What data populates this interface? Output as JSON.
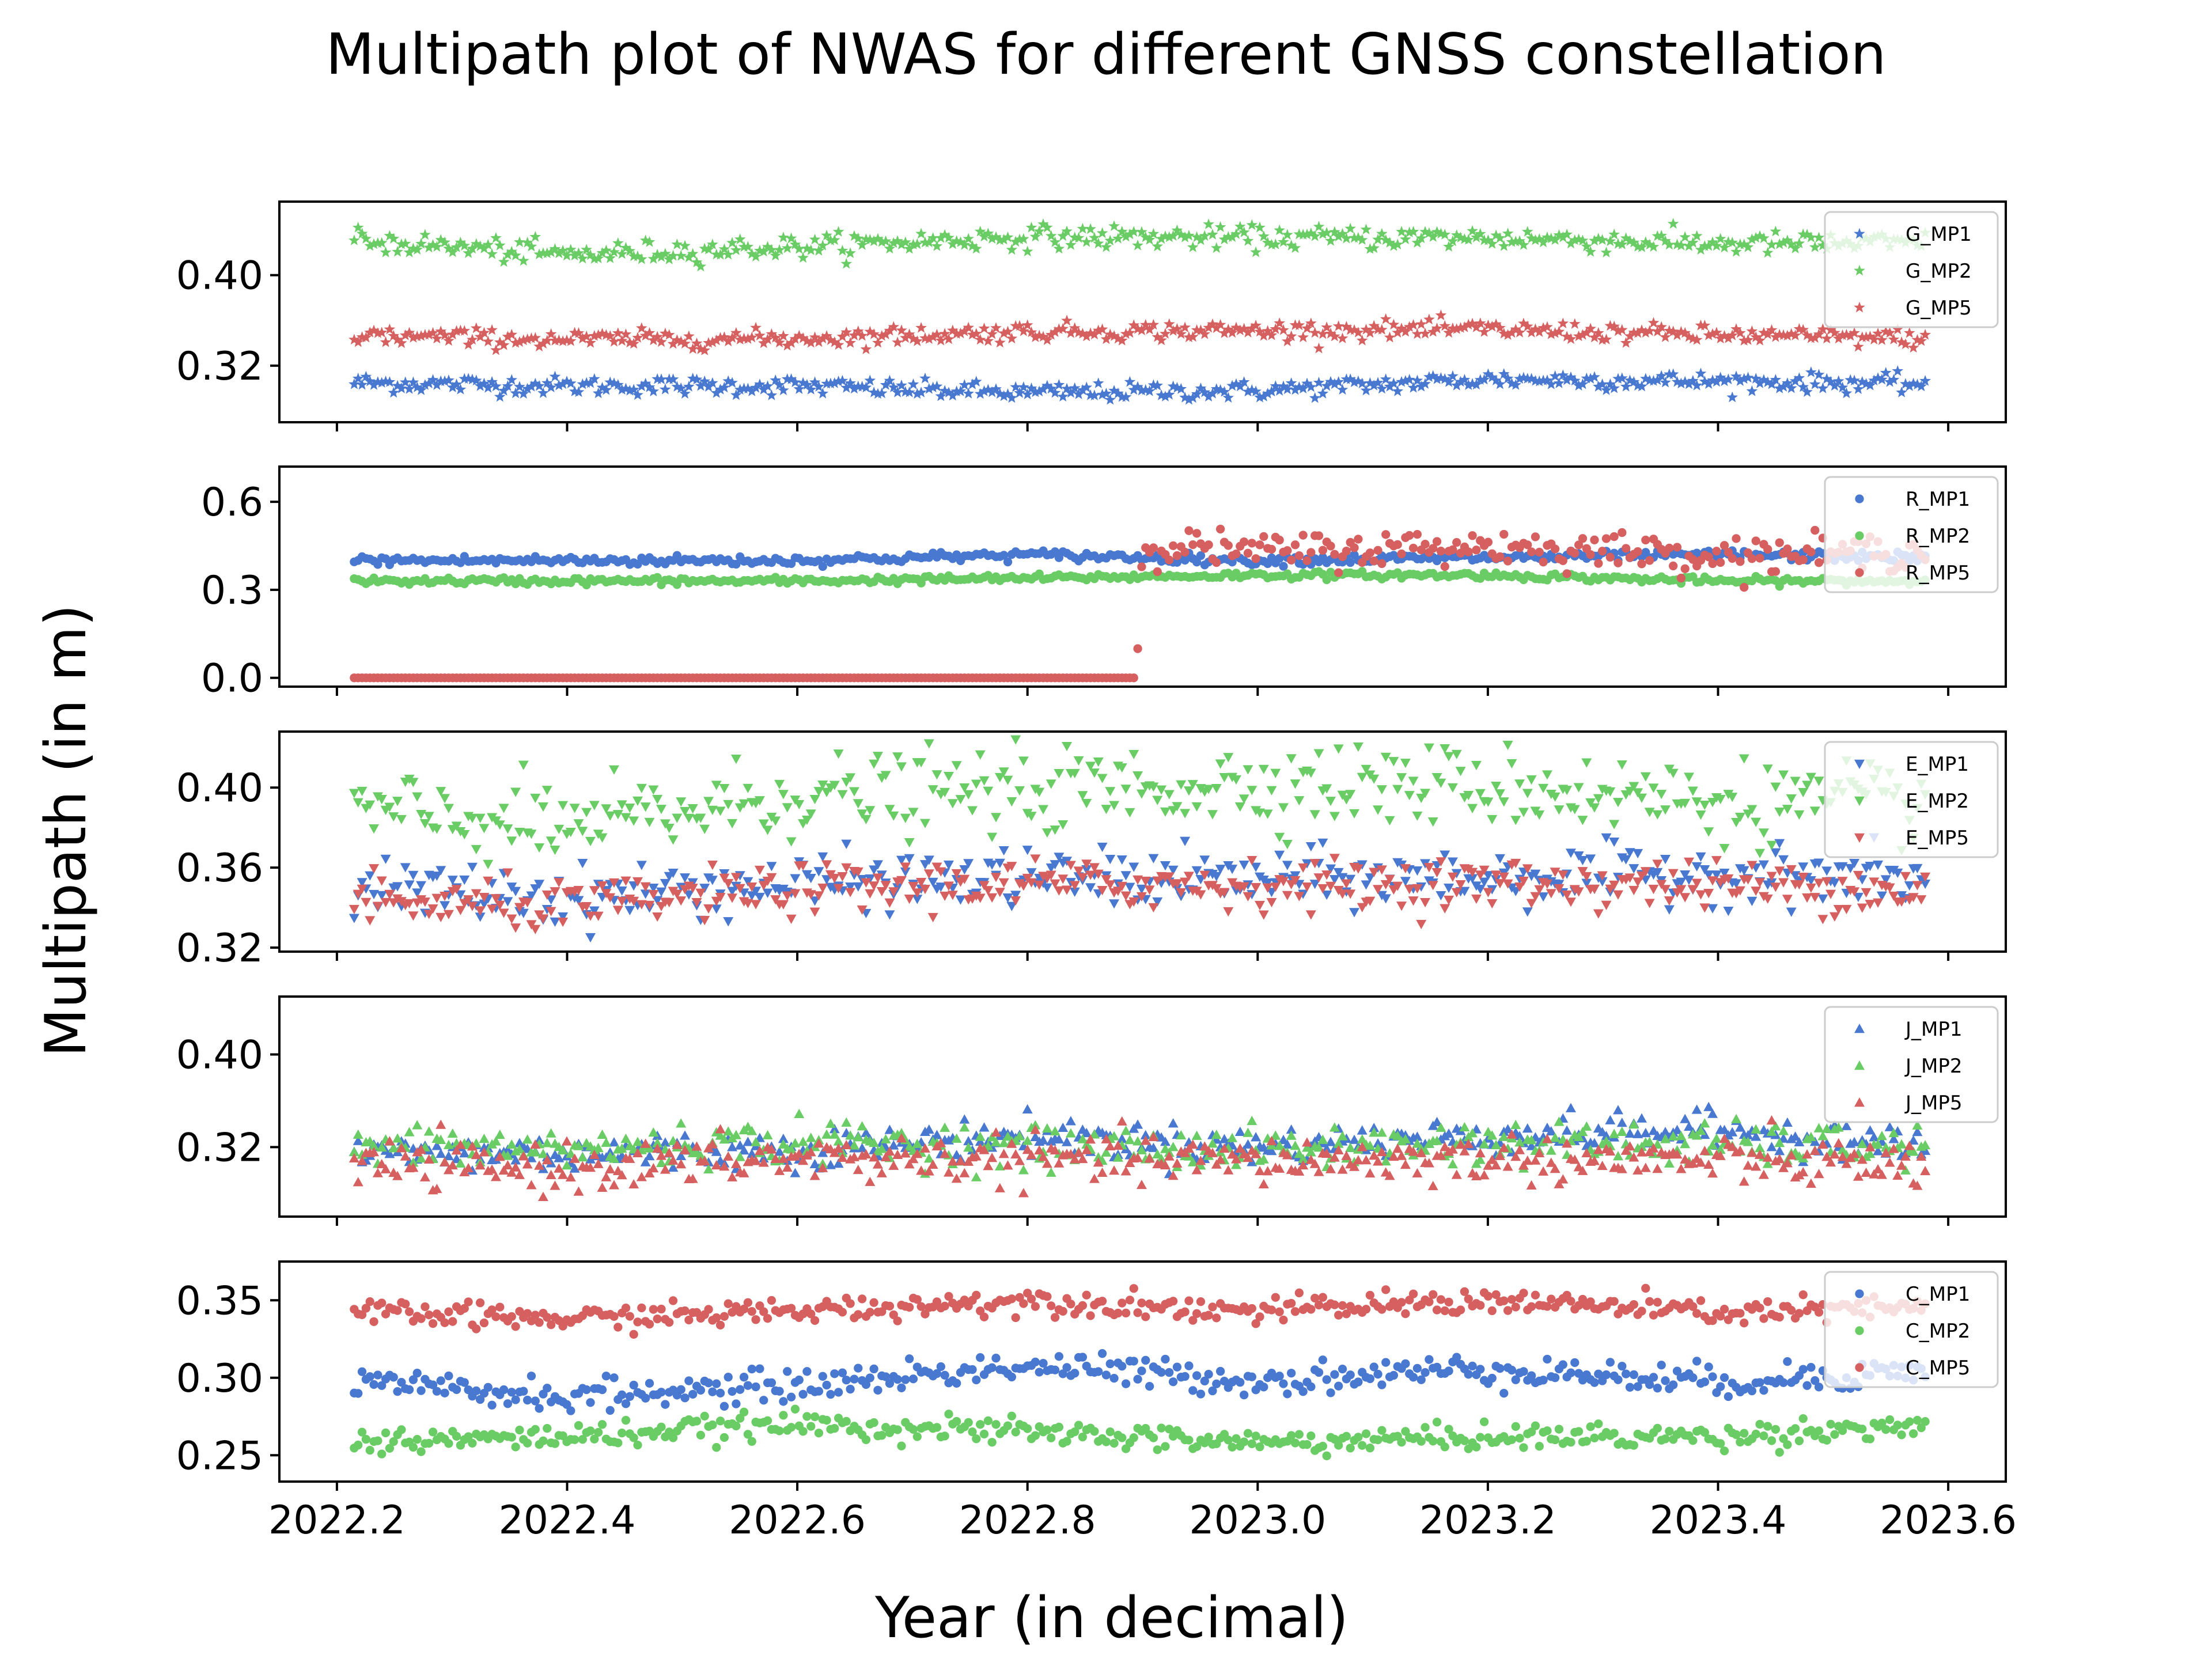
{
  "chart_data": {
    "type": "scatter",
    "title": "Multipath plot of NWAS for different GNSS constellation",
    "xlabel": "Year (in decimal)",
    "ylabel": "Multipath (in m)",
    "xlim": [
      2022.15,
      2023.65
    ],
    "xticks": [
      2022.2,
      2022.4,
      2022.6,
      2022.8,
      2023.0,
      2023.2,
      2023.4,
      2023.6
    ],
    "xtick_labels": [
      "2022.2",
      "2022.4",
      "2022.6",
      "2022.8",
      "2023.0",
      "2023.2",
      "2023.4",
      "2023.6"
    ],
    "x_start": 2022.215,
    "x_end": 2023.58,
    "points_per_series": 400,
    "colors": {
      "MP1": "#4878d0",
      "MP2": "#6acc64",
      "MP5": "#d65f5f"
    },
    "grid": false,
    "legend_position": "upper right (each panel)",
    "panels": [
      {
        "constellation": "G",
        "marker": "star",
        "ylim": [
          0.27,
          0.465
        ],
        "yticks": [
          0.32,
          0.4
        ],
        "ytick_labels": [
          "0.32",
          "0.40"
        ],
        "series": [
          {
            "name": "G_MP1",
            "color": "#4878d0",
            "x": [
              2022.2,
              2022.4,
              2022.6,
              2022.8,
              2023.0,
              2023.2,
              2023.4,
              2023.58
            ],
            "y": [
              0.305,
              0.302,
              0.302,
              0.296,
              0.298,
              0.308,
              0.306,
              0.304
            ],
            "noise": 0.004
          },
          {
            "name": "G_MP2",
            "color": "#6acc64",
            "x": [
              2022.2,
              2022.4,
              2022.6,
              2022.8,
              2023.0,
              2023.2,
              2023.4,
              2023.58
            ],
            "y": [
              0.432,
              0.418,
              0.425,
              0.434,
              0.433,
              0.433,
              0.428,
              0.428
            ],
            "noise": 0.005
          },
          {
            "name": "G_MP5",
            "color": "#d65f5f",
            "x": [
              2022.2,
              2022.4,
              2022.6,
              2022.8,
              2023.0,
              2023.2,
              2023.4,
              2023.58
            ],
            "y": [
              0.347,
              0.343,
              0.344,
              0.35,
              0.351,
              0.352,
              0.347,
              0.344
            ],
            "noise": 0.004
          }
        ]
      },
      {
        "constellation": "R",
        "marker": "circle",
        "ylim": [
          -0.03,
          0.72
        ],
        "yticks": [
          0.0,
          0.3,
          0.6
        ],
        "ytick_labels": [
          "0.0",
          "0.3",
          "0.6"
        ],
        "series": [
          {
            "name": "R_MP1",
            "color": "#4878d0",
            "x": [
              2022.2,
              2022.4,
              2022.6,
              2022.8,
              2023.0,
              2023.2,
              2023.4,
              2023.58
            ],
            "y": [
              0.4,
              0.4,
              0.4,
              0.42,
              0.4,
              0.41,
              0.42,
              0.41
            ],
            "noise": 0.008
          },
          {
            "name": "R_MP2",
            "color": "#6acc64",
            "x": [
              2022.2,
              2022.4,
              2022.6,
              2022.8,
              2023.0,
              2023.2,
              2023.4,
              2023.58
            ],
            "y": [
              0.33,
              0.33,
              0.33,
              0.34,
              0.35,
              0.35,
              0.33,
              0.33
            ],
            "noise": 0.006
          },
          {
            "name": "R_MP5",
            "color": "#d65f5f",
            "x": [
              2022.2,
              2022.4,
              2022.6,
              2022.8,
              2022.895,
              2022.9,
              2023.0,
              2023.2,
              2023.4,
              2023.58
            ],
            "y": [
              0.0,
              0.0,
              0.0,
              0.0,
              0.0,
              0.46,
              0.43,
              0.45,
              0.42,
              0.43
            ],
            "noise": 0.03
          }
        ]
      },
      {
        "constellation": "E",
        "marker": "triangle-down",
        "ylim": [
          0.318,
          0.428
        ],
        "yticks": [
          0.32,
          0.36,
          0.4
        ],
        "ytick_labels": [
          "0.32",
          "0.36",
          "0.40"
        ],
        "series": [
          {
            "name": "E_MP1",
            "color": "#4878d0",
            "x": [
              2022.2,
              2022.4,
              2022.6,
              2022.8,
              2023.0,
              2023.2,
              2023.4,
              2023.58
            ],
            "y": [
              0.35,
              0.345,
              0.352,
              0.355,
              0.354,
              0.355,
              0.357,
              0.354
            ],
            "noise": 0.007
          },
          {
            "name": "E_MP2",
            "color": "#6acc64",
            "x": [
              2022.2,
              2022.4,
              2022.6,
              2022.8,
              2023.0,
              2023.2,
              2023.4,
              2023.58
            ],
            "y": [
              0.389,
              0.38,
              0.396,
              0.398,
              0.402,
              0.401,
              0.393,
              0.392
            ],
            "noise": 0.01
          },
          {
            "name": "E_MP5",
            "color": "#d65f5f",
            "x": [
              2022.2,
              2022.4,
              2022.6,
              2022.8,
              2023.0,
              2023.2,
              2023.4,
              2023.58
            ],
            "y": [
              0.343,
              0.34,
              0.349,
              0.352,
              0.351,
              0.352,
              0.351,
              0.349
            ],
            "noise": 0.006
          }
        ]
      },
      {
        "constellation": "J",
        "marker": "triangle-up",
        "ylim": [
          0.26,
          0.45
        ],
        "yticks": [
          0.32,
          0.4
        ],
        "ytick_labels": [
          "0.32",
          "0.40"
        ],
        "series": [
          {
            "name": "J_MP1",
            "color": "#4878d0",
            "x": [
              2022.2,
              2022.4,
              2022.6,
              2022.8,
              2023.0,
              2023.2,
              2023.4,
              2023.58
            ],
            "y": [
              0.315,
              0.315,
              0.318,
              0.33,
              0.32,
              0.33,
              0.335,
              0.32
            ],
            "noise": 0.008
          },
          {
            "name": "J_MP2",
            "color": "#6acc64",
            "x": [
              2022.2,
              2022.4,
              2022.6,
              2022.8,
              2023.0,
              2023.2,
              2023.4,
              2023.58
            ],
            "y": [
              0.32,
              0.318,
              0.325,
              0.32,
              0.318,
              0.324,
              0.322,
              0.32
            ],
            "noise": 0.009
          },
          {
            "name": "J_MP5",
            "color": "#d65f5f",
            "x": [
              2022.2,
              2022.4,
              2022.6,
              2022.8,
              2023.0,
              2023.2,
              2023.4,
              2023.58
            ],
            "y": [
              0.305,
              0.302,
              0.31,
              0.31,
              0.308,
              0.31,
              0.308,
              0.305
            ],
            "noise": 0.01
          }
        ]
      },
      {
        "constellation": "C",
        "marker": "circle",
        "ylim": [
          0.233,
          0.375
        ],
        "yticks": [
          0.25,
          0.3,
          0.35
        ],
        "ytick_labels": [
          "0.25",
          "0.30",
          "0.35"
        ],
        "series": [
          {
            "name": "C_MP1",
            "color": "#4878d0",
            "x": [
              2022.2,
              2022.4,
              2022.6,
              2022.8,
              2023.0,
              2023.2,
              2023.4,
              2023.58
            ],
            "y": [
              0.296,
              0.288,
              0.295,
              0.308,
              0.298,
              0.306,
              0.297,
              0.305
            ],
            "noise": 0.005
          },
          {
            "name": "C_MP2",
            "color": "#6acc64",
            "x": [
              2022.2,
              2022.4,
              2022.6,
              2022.8,
              2023.0,
              2023.2,
              2023.4,
              2023.58
            ],
            "y": [
              0.258,
              0.262,
              0.27,
              0.265,
              0.258,
              0.262,
              0.262,
              0.27
            ],
            "noise": 0.004
          },
          {
            "name": "C_MP5",
            "color": "#d65f5f",
            "x": [
              2022.2,
              2022.4,
              2022.6,
              2022.8,
              2023.0,
              2023.2,
              2023.4,
              2023.58
            ],
            "y": [
              0.342,
              0.338,
              0.343,
              0.35,
              0.343,
              0.35,
              0.342,
              0.345
            ],
            "noise": 0.004
          }
        ]
      }
    ]
  }
}
